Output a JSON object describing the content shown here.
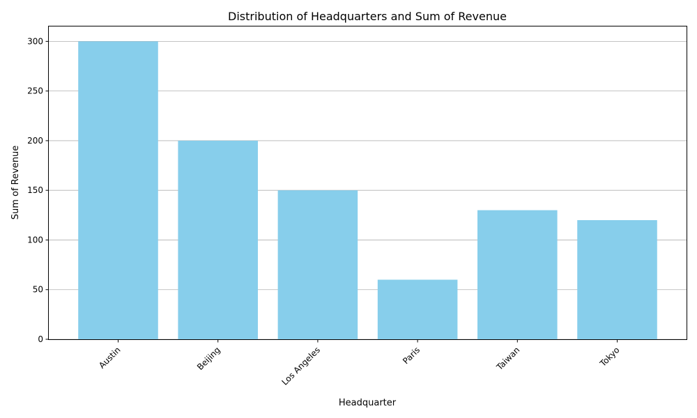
{
  "chart_data": {
    "type": "bar",
    "title": "Distribution of Headquarters and Sum of Revenue",
    "xlabel": "Headquarter",
    "ylabel": "Sum of Revenue",
    "categories": [
      "Austin",
      "Beijing",
      "Los Angeles",
      "Paris",
      "Taiwan",
      "Tokyo"
    ],
    "values": [
      300,
      200,
      150,
      60,
      130,
      120
    ],
    "ylim": [
      0,
      315
    ],
    "yticks": [
      0,
      50,
      100,
      150,
      200,
      250,
      300
    ],
    "grid": "y",
    "bar_color": "#87ceeb",
    "xtick_rotation": 45
  }
}
